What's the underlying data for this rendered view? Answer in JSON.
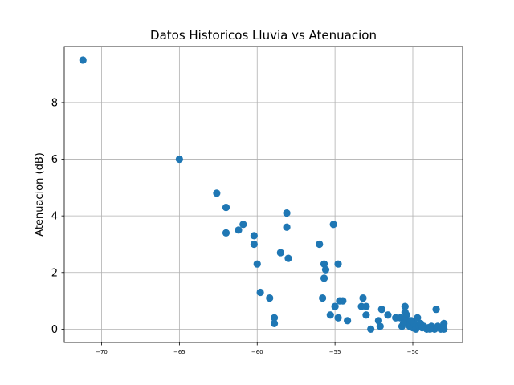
{
  "chart_data": {
    "type": "scatter",
    "title": "Datos Historicos Lluvia vs Atenuacion",
    "xlabel": "",
    "ylabel": "Atenuacion (dB)",
    "xlim": [
      -72.4,
      -46.8
    ],
    "ylim": [
      -0.47,
      9.98
    ],
    "xticks": [
      -70,
      -65,
      -60,
      -55,
      -50
    ],
    "xtick_labels": [
      "−70",
      "−65",
      "−60",
      "−55",
      "−50"
    ],
    "yticks": [
      0,
      2,
      4,
      6,
      8
    ],
    "ytick_labels": [
      "0",
      "2",
      "4",
      "6",
      "8"
    ],
    "grid": true,
    "marker_color": "#1f77b4",
    "series": [
      {
        "name": "",
        "points": [
          [
            -71.2,
            9.5
          ],
          [
            -65.0,
            6.0
          ],
          [
            -62.6,
            4.8
          ],
          [
            -62.0,
            4.3
          ],
          [
            -62.0,
            3.4
          ],
          [
            -61.2,
            3.5
          ],
          [
            -60.9,
            3.7
          ],
          [
            -60.2,
            3.3
          ],
          [
            -60.2,
            3.0
          ],
          [
            -60.0,
            2.3
          ],
          [
            -59.8,
            1.3
          ],
          [
            -59.2,
            1.1
          ],
          [
            -58.9,
            0.4
          ],
          [
            -58.9,
            0.2
          ],
          [
            -58.5,
            2.7
          ],
          [
            -58.1,
            4.1
          ],
          [
            -58.1,
            3.6
          ],
          [
            -58.0,
            2.5
          ],
          [
            -56.0,
            3.0
          ],
          [
            -55.8,
            1.1
          ],
          [
            -55.7,
            2.3
          ],
          [
            -55.7,
            1.8
          ],
          [
            -55.6,
            2.1
          ],
          [
            -55.3,
            0.5
          ],
          [
            -55.1,
            3.7
          ],
          [
            -55.0,
            0.8
          ],
          [
            -54.8,
            2.3
          ],
          [
            -54.8,
            0.4
          ],
          [
            -54.7,
            1.0
          ],
          [
            -54.5,
            1.0
          ],
          [
            -54.2,
            0.3
          ],
          [
            -53.3,
            0.8
          ],
          [
            -53.2,
            1.1
          ],
          [
            -53.0,
            0.5
          ],
          [
            -53.0,
            0.8
          ],
          [
            -52.7,
            0.0
          ],
          [
            -52.2,
            0.3
          ],
          [
            -52.1,
            0.1
          ],
          [
            -52.0,
            0.7
          ],
          [
            -51.6,
            0.5
          ],
          [
            -51.1,
            0.4
          ],
          [
            -50.8,
            0.4
          ],
          [
            -50.7,
            0.1
          ],
          [
            -50.5,
            0.8
          ],
          [
            -50.5,
            0.6
          ],
          [
            -50.4,
            0.5
          ],
          [
            -50.4,
            0.3
          ],
          [
            -50.3,
            0.2
          ],
          [
            -50.2,
            0.1
          ],
          [
            -50.0,
            0.05
          ],
          [
            -49.9,
            0.2
          ],
          [
            -49.8,
            0.0
          ],
          [
            -49.7,
            0.4
          ],
          [
            -49.6,
            0.1
          ],
          [
            -49.5,
            0.2
          ],
          [
            -49.3,
            0.1
          ],
          [
            -49.1,
            0.0
          ],
          [
            -49.0,
            0.05
          ],
          [
            -48.8,
            0.1
          ],
          [
            -48.6,
            0.0
          ],
          [
            -48.5,
            0.7
          ],
          [
            -48.4,
            0.1
          ],
          [
            -48.2,
            0.0
          ],
          [
            -48.0,
            0.2
          ],
          [
            -48.0,
            0.0
          ],
          [
            -50.6,
            0.2
          ],
          [
            -50.1,
            0.3
          ],
          [
            -49.4,
            0.05
          ],
          [
            -48.9,
            0.0
          ]
        ]
      }
    ]
  }
}
